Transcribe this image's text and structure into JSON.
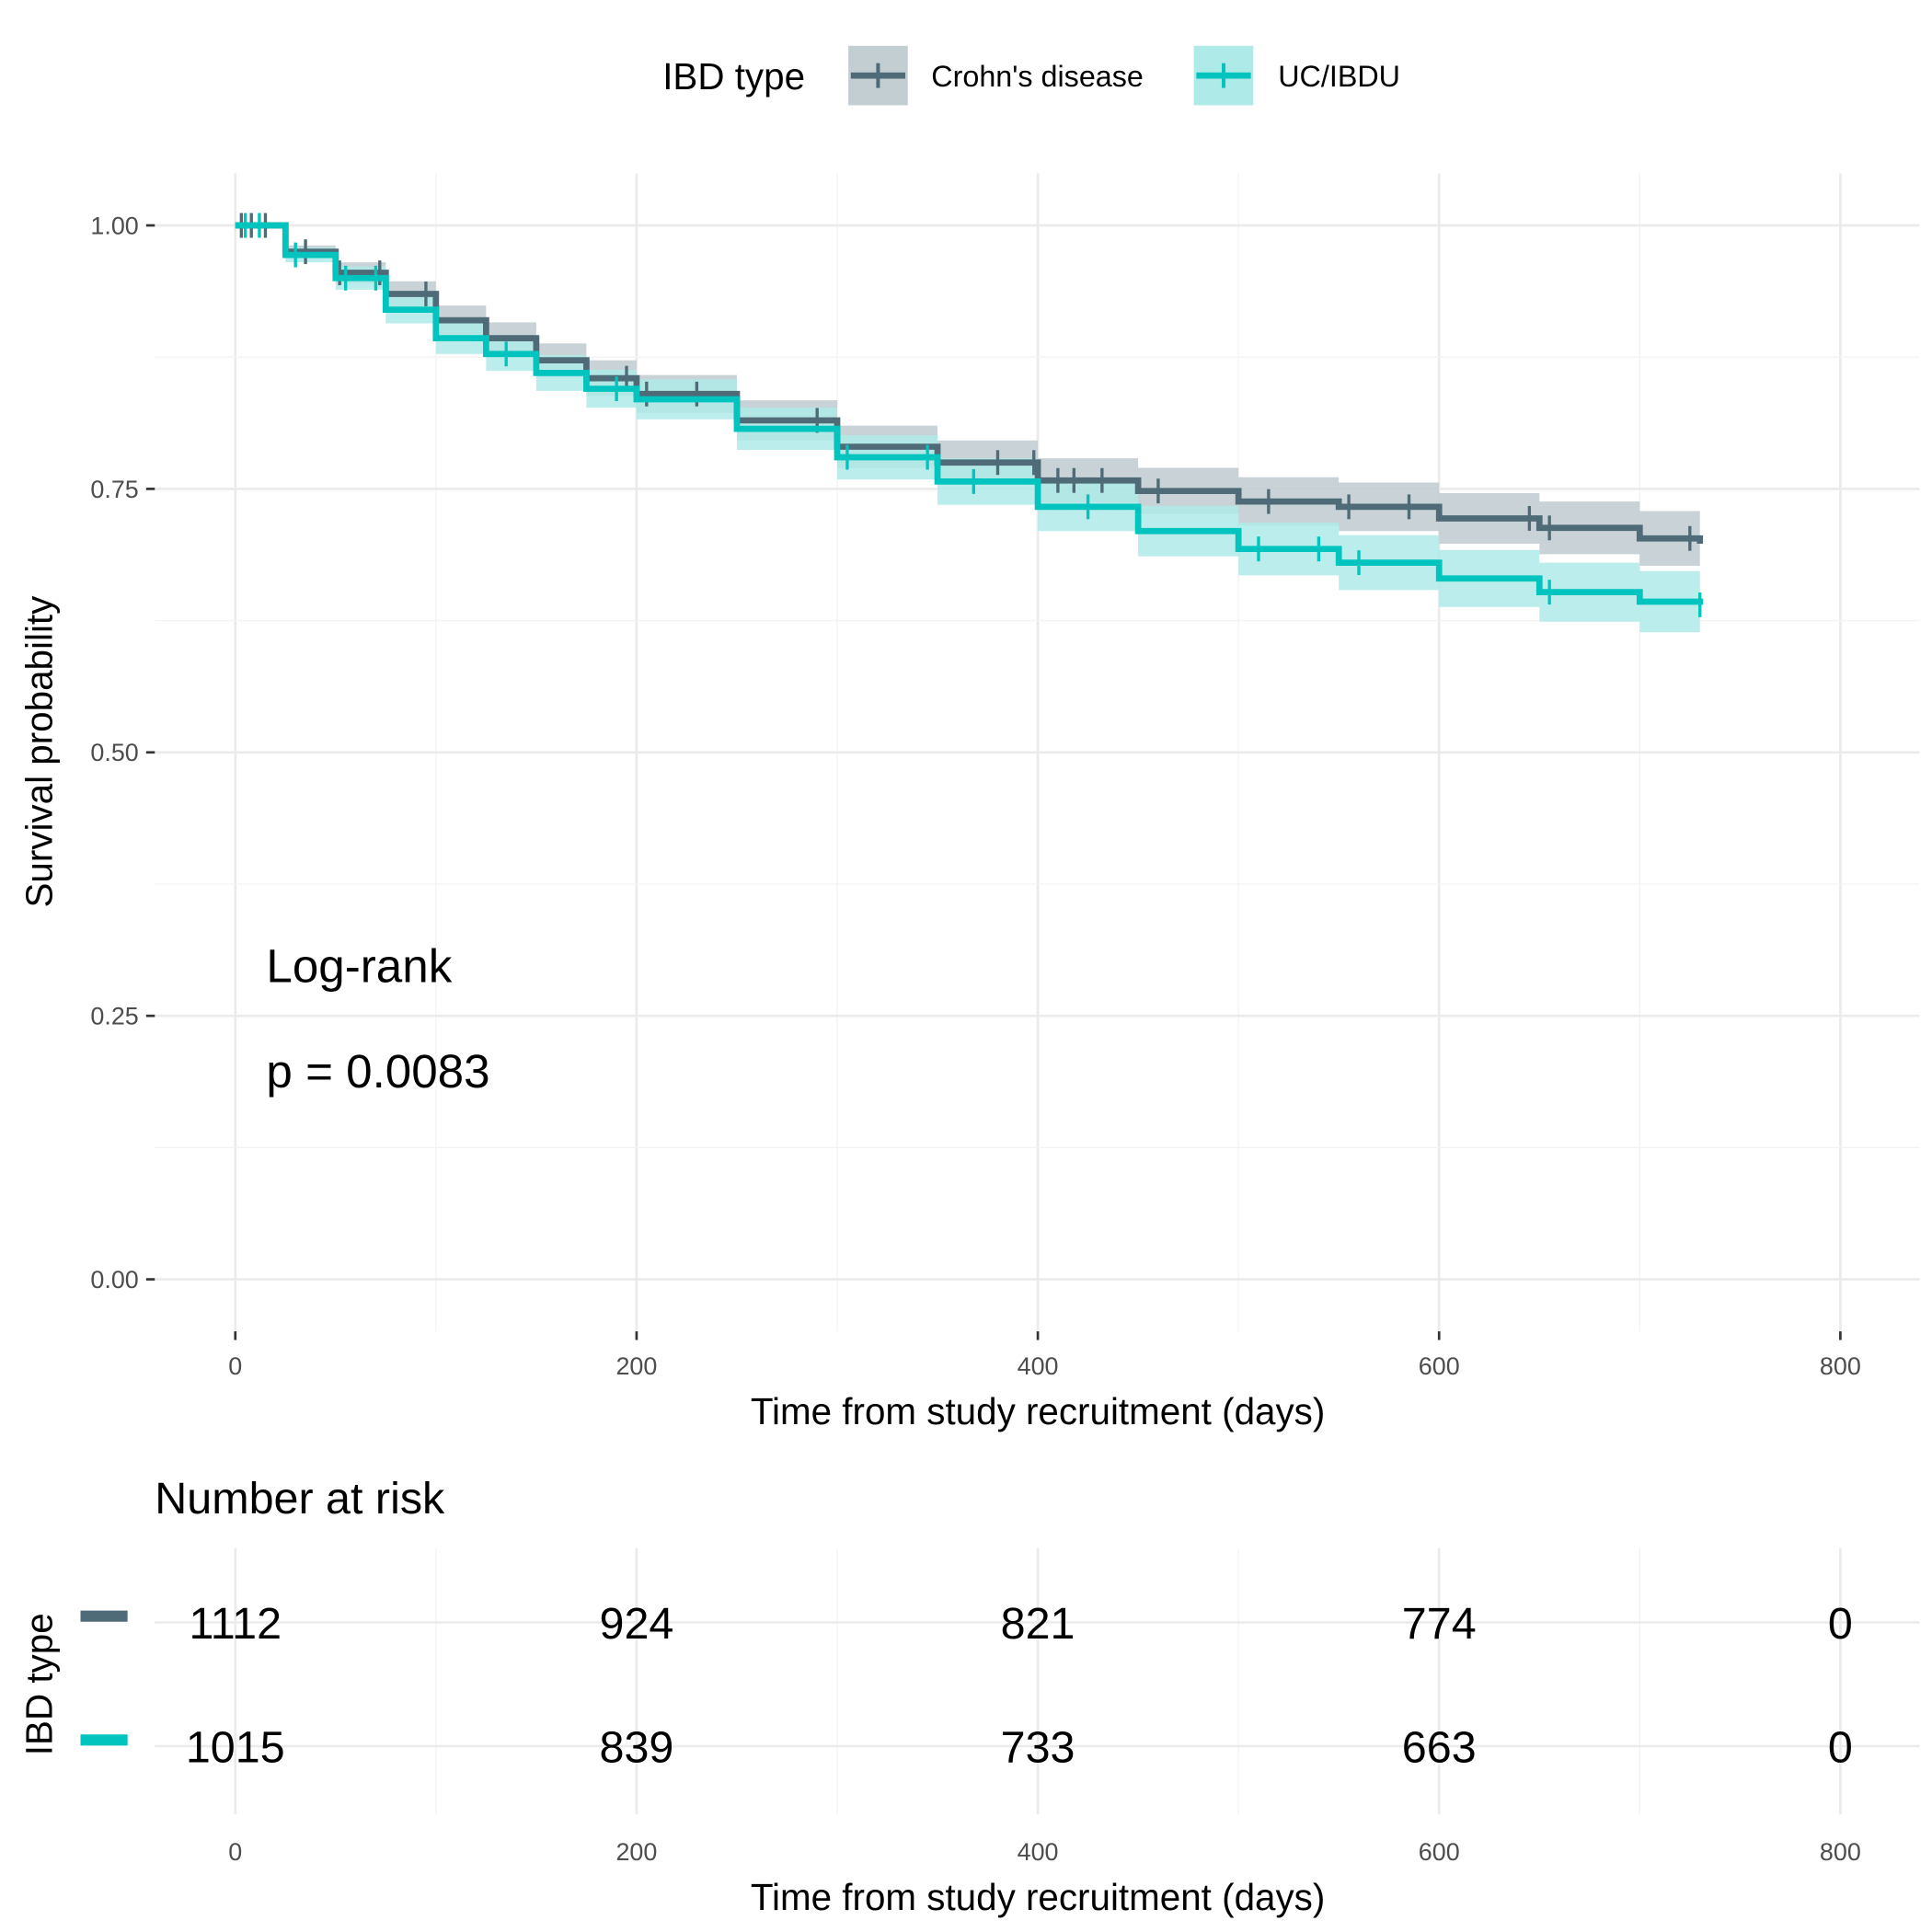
{
  "colors": {
    "crohns": "#4f6b78",
    "uc": "#00c4bd",
    "crohns_band": "#c3ced3",
    "uc_band": "#aeeae7"
  },
  "legend": {
    "title": "IBD type",
    "items": [
      "Crohn's disease",
      "UC/IBDU"
    ]
  },
  "annotation": {
    "line1": "Log-rank",
    "line2": "p = 0.0083"
  },
  "risk_table": {
    "title": "Number at risk",
    "ylabel": "IBD type",
    "xlabel": "Time from study recruitment (days)",
    "times": [
      0,
      200,
      400,
      600,
      800
    ],
    "rows": [
      {
        "group": "Crohn's disease",
        "values": [
          "1112",
          "924",
          "821",
          "774",
          "0"
        ]
      },
      {
        "group": "UC/IBDU",
        "values": [
          "1015",
          "839",
          "733",
          "663",
          "0"
        ]
      }
    ]
  },
  "chart_data": {
    "type": "line",
    "title": "",
    "xlabel": "Time from study recruitment (days)",
    "ylabel": "Survival probability",
    "xlim": [
      0,
      800
    ],
    "ylim": [
      0,
      1
    ],
    "xticks": [
      "0",
      "200",
      "400",
      "600",
      "800"
    ],
    "yticks": [
      "0.00",
      "0.25",
      "0.50",
      "0.75",
      "1.00"
    ],
    "grid": true,
    "legend_position": "top",
    "series": [
      {
        "name": "Crohn's disease",
        "x": [
          0,
          25,
          50,
          75,
          100,
          125,
          150,
          175,
          200,
          250,
          300,
          350,
          400,
          450,
          500,
          550,
          600,
          650,
          700,
          730
        ],
        "y": [
          1.0,
          0.975,
          0.955,
          0.935,
          0.91,
          0.893,
          0.872,
          0.855,
          0.84,
          0.815,
          0.79,
          0.775,
          0.758,
          0.748,
          0.738,
          0.733,
          0.722,
          0.713,
          0.703,
          0.698
        ],
        "ci_halfwidth": [
          0,
          0.006,
          0.01,
          0.012,
          0.014,
          0.015,
          0.016,
          0.017,
          0.018,
          0.019,
          0.02,
          0.021,
          0.021,
          0.022,
          0.023,
          0.023,
          0.024,
          0.025,
          0.026,
          0.027
        ],
        "censored_x": [
          3,
          8,
          15,
          35,
          52,
          72,
          95,
          125,
          195,
          205,
          230,
          290,
          380,
          398,
          410,
          418,
          432,
          460,
          515,
          555,
          585,
          645,
          655,
          725
        ]
      },
      {
        "name": "UC/IBDU",
        "x": [
          0,
          25,
          50,
          75,
          100,
          125,
          150,
          175,
          200,
          250,
          300,
          350,
          400,
          450,
          500,
          550,
          600,
          650,
          700,
          730
        ],
        "y": [
          1.0,
          0.972,
          0.95,
          0.92,
          0.893,
          0.878,
          0.86,
          0.845,
          0.835,
          0.807,
          0.78,
          0.757,
          0.733,
          0.71,
          0.693,
          0.68,
          0.665,
          0.652,
          0.643,
          0.64
        ],
        "ci_halfwidth": [
          0,
          0.007,
          0.011,
          0.013,
          0.015,
          0.016,
          0.017,
          0.018,
          0.019,
          0.02,
          0.021,
          0.022,
          0.023,
          0.024,
          0.025,
          0.026,
          0.027,
          0.028,
          0.029,
          0.03
        ],
        "censored_x": [
          5,
          12,
          30,
          55,
          70,
          135,
          190,
          305,
          345,
          368,
          425,
          510,
          540,
          560,
          655,
          730
        ]
      }
    ]
  }
}
